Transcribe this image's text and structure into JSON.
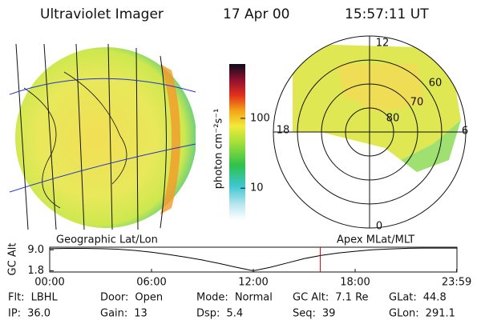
{
  "header": {
    "title": "Ultraviolet Imager",
    "date": "17 Apr 00",
    "time": "15:57:11 UT"
  },
  "globe": {
    "caption": "Geographic Lat/Lon"
  },
  "polar": {
    "caption": "Apex MLat/MLT",
    "mlt_labels": [
      "12",
      "6",
      "0",
      "18"
    ],
    "lat_labels": [
      "60",
      "70",
      "80"
    ]
  },
  "colorbar": {
    "label": "photon cm⁻²s⁻¹",
    "scale": "log",
    "lim": [
      3.5,
      600
    ],
    "ticks": [
      10,
      100
    ]
  },
  "chart_data": {
    "type": "line",
    "ylabel": "GC Alt",
    "x": [
      0,
      1,
      2,
      3,
      4,
      5,
      6,
      7,
      8,
      9,
      10,
      11,
      12,
      13,
      14,
      15,
      16,
      17,
      18,
      19,
      20,
      21,
      22,
      23,
      24
    ],
    "series": [
      {
        "color": "#000000",
        "values": [
          9.4,
          9.5,
          9.5,
          9.4,
          9.2,
          8.8,
          8.2,
          7.4,
          6.5,
          5.5,
          4.3,
          3.0,
          1.8,
          3.0,
          4.5,
          6.0,
          7.1,
          7.9,
          8.5,
          9.0,
          9.3,
          9.5,
          9.6,
          9.6,
          9.6
        ]
      }
    ],
    "xlim": [
      0,
      24
    ],
    "ylim": [
      1.4,
      9.9
    ],
    "xticks": [
      {
        "value": 0,
        "label": "00:00"
      },
      {
        "value": 6,
        "label": "06:00"
      },
      {
        "value": 12,
        "label": "12:00"
      },
      {
        "value": 18,
        "label": "18:00"
      },
      {
        "value": 23.98,
        "label": "23:59"
      }
    ],
    "yticks": [
      {
        "value": 9.0,
        "label": "9.0"
      },
      {
        "value": 1.8,
        "label": "1.8"
      }
    ],
    "marker": {
      "value": 15.95,
      "color": "#cc0000"
    }
  },
  "status": [
    [
      {
        "label": "Flt:",
        "value": "LBHL"
      },
      {
        "label": "Door:",
        "value": "Open"
      },
      {
        "label": "Mode:",
        "value": "Normal"
      },
      {
        "label": "GC Alt:",
        "value": "7.1 Re"
      },
      {
        "label": "GLat:",
        "value": "44.8"
      }
    ],
    [
      {
        "label": "IP:",
        "value": "36.0"
      },
      {
        "label": "Gain:",
        "value": "13"
      },
      {
        "label": "Dsp:",
        "value": "5.4"
      },
      {
        "label": "Seq:",
        "value": "39"
      },
      {
        "label": "GLon:",
        "value": "291.1"
      }
    ]
  ]
}
